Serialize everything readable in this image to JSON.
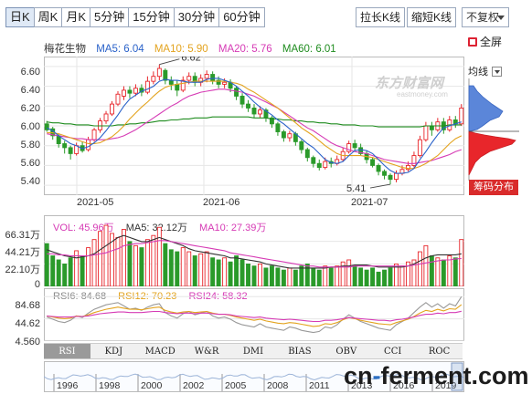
{
  "toolbar": {
    "periods": [
      "日K",
      "周K",
      "月K",
      "5分钟",
      "15分钟",
      "30分钟",
      "60分钟"
    ],
    "active_period": "日K",
    "stretch_label": "拉长K线",
    "shrink_label": "缩短K线",
    "adjust_selected": "不复权",
    "fullscreen_label": "全屏"
  },
  "legend": {
    "stock_name": "梅花生物",
    "ma5": "MA5: 6.04",
    "ma10": "MA10: 5.90",
    "ma20": "MA20: 5.76",
    "ma60": "MA60: 6.01"
  },
  "colors": {
    "up": "#e8262b",
    "down": "#2a9a2a",
    "ma5": "#2a62c9",
    "ma10": "#e3a31e",
    "ma20": "#d63bb5",
    "ma60": "#1f8c1f",
    "grid": "#e6e6e6"
  },
  "watermark": {
    "brand": "东方财富网",
    "url": "eastmoney.com"
  },
  "side_panel": {
    "chip_label": "均线",
    "chip_distribution_button": "筹码分布"
  },
  "price_axis": {
    "ticks": [
      "6.60",
      "6.40",
      "6.20",
      "6.00",
      "5.80",
      "5.60",
      "5.40"
    ]
  },
  "time_axis": {
    "ticks": [
      "2021-05",
      "2021-06",
      "2021-07"
    ]
  },
  "annotations": {
    "high": "6.62",
    "low": "5.41"
  },
  "volume": {
    "vol": "VOL: 45.96万",
    "ma5": "MA5: 32.12万",
    "ma10": "MA10: 27.39万",
    "axis_ticks": [
      "66.31万",
      "44.21万",
      "22.10万",
      "0"
    ]
  },
  "rsi": {
    "rsi6": "RSI6: 84.68",
    "rsi12": "RSI12: 70.23",
    "rsi24": "RSI24: 58.32",
    "axis_ticks": [
      "84.68",
      "44.62",
      "4.560"
    ]
  },
  "indicator_tabs": [
    "RSI",
    "KDJ",
    "MACD",
    "W&R",
    "DMI",
    "BIAS",
    "OBV",
    "CCI",
    "ROC"
  ],
  "active_indicator": "RSI",
  "overview_years": [
    "1996",
    "1998",
    "2000",
    "2002",
    "2005",
    "2008",
    "2011",
    "2013",
    "2016",
    "2019"
  ],
  "footer_brand": {
    "left": "cn",
    "dash": "-",
    "right": "ferment.com"
  },
  "chart_data": {
    "type": "candlestick",
    "y_range": [
      5.3,
      6.7
    ],
    "x_labels": [
      "2021-05",
      "2021-06",
      "2021-07"
    ],
    "candles": [
      [
        6.02,
        5.96,
        6.05,
        5.94
      ],
      [
        5.97,
        5.9,
        5.99,
        5.86
      ],
      [
        5.9,
        5.82,
        5.92,
        5.78
      ],
      [
        5.82,
        5.78,
        5.85,
        5.72
      ],
      [
        5.78,
        5.72,
        5.8,
        5.66
      ],
      [
        5.72,
        5.8,
        5.83,
        5.7
      ],
      [
        5.8,
        5.75,
        5.84,
        5.73
      ],
      [
        5.76,
        5.86,
        5.89,
        5.74
      ],
      [
        5.86,
        5.96,
        5.98,
        5.84
      ],
      [
        5.96,
        6.05,
        6.08,
        5.93
      ],
      [
        6.05,
        6.12,
        6.15,
        6.02
      ],
      [
        6.12,
        6.22,
        6.25,
        6.1
      ],
      [
        6.22,
        6.32,
        6.35,
        6.2
      ],
      [
        6.3,
        6.36,
        6.4,
        6.26
      ],
      [
        6.36,
        6.33,
        6.4,
        6.28
      ],
      [
        6.33,
        6.38,
        6.42,
        6.3
      ],
      [
        6.38,
        6.34,
        6.42,
        6.3
      ],
      [
        6.34,
        6.45,
        6.5,
        6.32
      ],
      [
        6.45,
        6.5,
        6.55,
        6.42
      ],
      [
        6.5,
        6.58,
        6.62,
        6.46
      ],
      [
        6.56,
        6.46,
        6.58,
        6.42
      ],
      [
        6.46,
        6.42,
        6.5,
        6.36
      ],
      [
        6.42,
        6.36,
        6.46,
        6.3
      ],
      [
        6.36,
        6.46,
        6.5,
        6.34
      ],
      [
        6.46,
        6.5,
        6.54,
        6.42
      ],
      [
        6.5,
        6.44,
        6.54,
        6.4
      ],
      [
        6.44,
        6.48,
        6.52,
        6.4
      ],
      [
        6.48,
        6.52,
        6.56,
        6.44
      ],
      [
        6.52,
        6.46,
        6.55,
        6.42
      ],
      [
        6.46,
        6.42,
        6.5,
        6.38
      ],
      [
        6.42,
        6.44,
        6.48,
        6.38
      ],
      [
        6.44,
        6.38,
        6.47,
        6.34
      ],
      [
        6.38,
        6.3,
        6.4,
        6.26
      ],
      [
        6.3,
        6.22,
        6.33,
        6.18
      ],
      [
        6.22,
        6.18,
        6.26,
        6.14
      ],
      [
        6.18,
        6.12,
        6.22,
        6.08
      ],
      [
        6.12,
        6.16,
        6.2,
        6.08
      ],
      [
        6.16,
        6.08,
        6.18,
        6.04
      ],
      [
        6.08,
        6.02,
        6.1,
        5.98
      ],
      [
        6.02,
        5.94,
        6.04,
        5.9
      ],
      [
        5.94,
        5.88,
        5.96,
        5.84
      ],
      [
        5.88,
        5.92,
        5.95,
        5.84
      ],
      [
        5.92,
        5.84,
        5.94,
        5.8
      ],
      [
        5.84,
        5.76,
        5.86,
        5.72
      ],
      [
        5.76,
        5.68,
        5.78,
        5.64
      ],
      [
        5.68,
        5.62,
        5.7,
        5.58
      ],
      [
        5.62,
        5.58,
        5.66,
        5.55
      ],
      [
        5.58,
        5.64,
        5.68,
        5.56
      ],
      [
        5.64,
        5.62,
        5.68,
        5.58
      ],
      [
        5.62,
        5.66,
        5.7,
        5.6
      ],
      [
        5.66,
        5.74,
        5.78,
        5.64
      ],
      [
        5.74,
        5.82,
        5.85,
        5.72
      ],
      [
        5.82,
        5.78,
        5.86,
        5.74
      ],
      [
        5.78,
        5.72,
        5.82,
        5.7
      ],
      [
        5.72,
        5.66,
        5.75,
        5.62
      ],
      [
        5.66,
        5.6,
        5.68,
        5.58
      ],
      [
        5.6,
        5.54,
        5.62,
        5.5
      ],
      [
        5.54,
        5.5,
        5.56,
        5.46
      ],
      [
        5.5,
        5.46,
        5.52,
        5.41
      ],
      [
        5.46,
        5.52,
        5.55,
        5.43
      ],
      [
        5.52,
        5.56,
        5.6,
        5.5
      ],
      [
        5.56,
        5.6,
        5.64,
        5.54
      ],
      [
        5.6,
        5.7,
        5.74,
        5.58
      ],
      [
        5.7,
        5.86,
        5.9,
        5.68
      ],
      [
        5.86,
        6.0,
        6.04,
        5.84
      ],
      [
        6.0,
        5.96,
        6.04,
        5.9
      ],
      [
        5.96,
        6.04,
        6.08,
        5.94
      ],
      [
        6.04,
        5.96,
        6.08,
        5.92
      ],
      [
        5.96,
        6.06,
        6.1,
        5.94
      ],
      [
        6.06,
        6.02,
        6.1,
        5.98
      ],
      [
        6.02,
        6.18,
        6.22,
        6.0
      ]
    ],
    "ma5": [
      5.98,
      5.95,
      5.9,
      5.86,
      5.82,
      5.8,
      5.77,
      5.79,
      5.83,
      5.88,
      5.95,
      6.03,
      6.11,
      6.2,
      6.27,
      6.31,
      6.35,
      6.37,
      6.4,
      6.45,
      6.47,
      6.46,
      6.46,
      6.45,
      6.44,
      6.44,
      6.44,
      6.47,
      6.48,
      6.48,
      6.46,
      6.44,
      6.4,
      6.35,
      6.3,
      6.24,
      6.19,
      6.15,
      6.11,
      6.06,
      6.02,
      5.97,
      5.92,
      5.87,
      5.82,
      5.78,
      5.72,
      5.66,
      5.63,
      5.62,
      5.64,
      5.7,
      5.75,
      5.76,
      5.75,
      5.72,
      5.66,
      5.6,
      5.55,
      5.52,
      5.52,
      5.53,
      5.57,
      5.66,
      5.74,
      5.83,
      5.91,
      5.98,
      6.0,
      6.02,
      6.04
    ],
    "ma10": [
      5.93,
      5.93,
      5.92,
      5.9,
      5.88,
      5.86,
      5.84,
      5.82,
      5.82,
      5.83,
      5.86,
      5.89,
      5.94,
      6.0,
      6.07,
      6.13,
      6.19,
      6.24,
      6.3,
      6.35,
      6.39,
      6.41,
      6.42,
      6.43,
      6.44,
      6.45,
      6.45,
      6.45,
      6.45,
      6.45,
      6.45,
      6.44,
      6.43,
      6.41,
      6.37,
      6.34,
      6.3,
      6.26,
      6.22,
      6.18,
      6.13,
      6.08,
      6.03,
      5.98,
      5.94,
      5.9,
      5.85,
      5.8,
      5.76,
      5.72,
      5.7,
      5.7,
      5.7,
      5.7,
      5.69,
      5.68,
      5.66,
      5.64,
      5.62,
      5.6,
      5.58,
      5.57,
      5.57,
      5.59,
      5.62,
      5.66,
      5.7,
      5.76,
      5.82,
      5.87,
      5.9
    ],
    "ma20": [
      5.92,
      5.91,
      5.9,
      5.89,
      5.88,
      5.87,
      5.87,
      5.86,
      5.86,
      5.86,
      5.86,
      5.87,
      5.88,
      5.9,
      5.93,
      5.96,
      6.0,
      6.04,
      6.08,
      6.12,
      6.16,
      6.2,
      6.23,
      6.27,
      6.3,
      6.32,
      6.34,
      6.35,
      6.36,
      6.37,
      6.37,
      6.36,
      6.35,
      6.34,
      6.32,
      6.3,
      6.27,
      6.24,
      6.21,
      6.18,
      6.14,
      6.1,
      6.06,
      6.02,
      5.98,
      5.95,
      5.91,
      5.87,
      5.83,
      5.8,
      5.78,
      5.76,
      5.74,
      5.73,
      5.72,
      5.7,
      5.68,
      5.66,
      5.65,
      5.64,
      5.63,
      5.62,
      5.62,
      5.63,
      5.64,
      5.65,
      5.67,
      5.69,
      5.71,
      5.74,
      5.76
    ],
    "ma60": [
      6.04,
      6.03,
      6.03,
      6.02,
      6.02,
      6.01,
      6.01,
      6.01,
      6.0,
      6.0,
      6.0,
      6.0,
      6.01,
      6.01,
      6.02,
      6.02,
      6.03,
      6.03,
      6.04,
      6.05,
      6.05,
      6.06,
      6.06,
      6.07,
      6.07,
      6.08,
      6.08,
      6.08,
      6.09,
      6.09,
      6.09,
      6.09,
      6.09,
      6.09,
      6.09,
      6.08,
      6.08,
      6.08,
      6.07,
      6.07,
      6.06,
      6.06,
      6.05,
      6.05,
      6.04,
      6.04,
      6.03,
      6.03,
      6.02,
      6.02,
      6.01,
      6.01,
      6.01,
      6.0,
      6.0,
      6.0,
      5.99,
      5.99,
      5.99,
      5.99,
      5.99,
      5.99,
      5.99,
      5.99,
      6.0,
      6.0,
      6.0,
      6.0,
      6.01,
      6.01,
      6.01
    ],
    "volume_range": [
      0,
      66.31
    ],
    "volume": [
      42,
      30,
      26,
      22,
      28,
      35,
      30,
      38,
      46,
      54,
      60,
      52,
      48,
      56,
      44,
      40,
      38,
      46,
      50,
      58,
      42,
      36,
      34,
      38,
      34,
      30,
      32,
      34,
      28,
      26,
      28,
      24,
      30,
      26,
      22,
      20,
      22,
      18,
      20,
      18,
      16,
      18,
      16,
      20,
      22,
      18,
      16,
      20,
      18,
      20,
      24,
      26,
      20,
      18,
      16,
      18,
      14,
      16,
      18,
      22,
      20,
      24,
      26,
      34,
      40,
      30,
      28,
      26,
      30,
      28,
      46
    ],
    "vol_ma5": [
      36,
      34,
      32,
      30,
      29,
      28,
      29,
      30,
      32,
      36,
      40,
      44,
      48,
      50,
      48,
      46,
      44,
      44,
      46,
      48,
      46,
      44,
      42,
      40,
      37,
      35,
      34,
      33,
      32,
      31,
      30,
      28,
      28,
      27,
      26,
      25,
      24,
      22,
      21,
      20,
      19,
      18,
      18,
      18,
      18,
      18,
      18,
      18,
      19,
      19,
      20,
      20,
      21,
      21,
      21,
      20,
      19,
      19,
      19,
      19,
      19,
      20,
      22,
      25,
      28,
      30,
      31,
      31,
      31,
      31,
      32
    ],
    "vol_ma10": [
      32,
      32,
      31,
      31,
      30,
      30,
      30,
      30,
      31,
      32,
      33,
      35,
      37,
      40,
      41,
      42,
      42,
      43,
      44,
      45,
      45,
      44,
      43,
      42,
      41,
      40,
      39,
      38,
      37,
      36,
      35,
      33,
      32,
      31,
      30,
      29,
      28,
      27,
      26,
      25,
      24,
      23,
      22,
      21,
      20,
      20,
      19,
      19,
      19,
      19,
      19,
      19,
      20,
      20,
      20,
      20,
      20,
      20,
      20,
      20,
      20,
      20,
      21,
      22,
      23,
      24,
      25,
      26,
      26,
      27,
      27.39
    ],
    "rsi_range": [
      4.56,
      100
    ],
    "rsi6": [
      48,
      44,
      40,
      38,
      42,
      50,
      47,
      55,
      62,
      66,
      70,
      72,
      74,
      68,
      62,
      64,
      60,
      66,
      70,
      72,
      56,
      50,
      46,
      54,
      58,
      52,
      55,
      58,
      50,
      46,
      48,
      44,
      38,
      34,
      32,
      30,
      36,
      30,
      28,
      26,
      24,
      30,
      28,
      24,
      22,
      20,
      22,
      30,
      28,
      34,
      44,
      52,
      46,
      40,
      36,
      32,
      28,
      26,
      24,
      34,
      40,
      46,
      56,
      66,
      74,
      66,
      72,
      64,
      72,
      68,
      84.68
    ],
    "rsi12": [
      50,
      48,
      46,
      45,
      46,
      50,
      49,
      52,
      56,
      59,
      62,
      64,
      66,
      64,
      62,
      62,
      61,
      63,
      65,
      66,
      60,
      57,
      55,
      57,
      58,
      56,
      57,
      58,
      55,
      53,
      53,
      51,
      48,
      46,
      44,
      42,
      44,
      41,
      39,
      37,
      36,
      38,
      37,
      35,
      33,
      31,
      32,
      36,
      35,
      38,
      43,
      47,
      45,
      42,
      40,
      38,
      36,
      35,
      34,
      38,
      41,
      44,
      49,
      55,
      60,
      58,
      62,
      59,
      63,
      62,
      70.23
    ],
    "rsi24": [
      50,
      49,
      48,
      48,
      48,
      49,
      49,
      50,
      52,
      54,
      55,
      56,
      57,
      57,
      56,
      56,
      56,
      57,
      58,
      58,
      56,
      55,
      54,
      55,
      55,
      54,
      55,
      55,
      54,
      53,
      53,
      52,
      50,
      49,
      48,
      47,
      48,
      46,
      45,
      44,
      43,
      44,
      43,
      42,
      41,
      40,
      40,
      42,
      42,
      43,
      45,
      47,
      46,
      45,
      44,
      43,
      42,
      42,
      41,
      43,
      44,
      46,
      48,
      51,
      53,
      53,
      55,
      54,
      56,
      56,
      58.32
    ]
  }
}
